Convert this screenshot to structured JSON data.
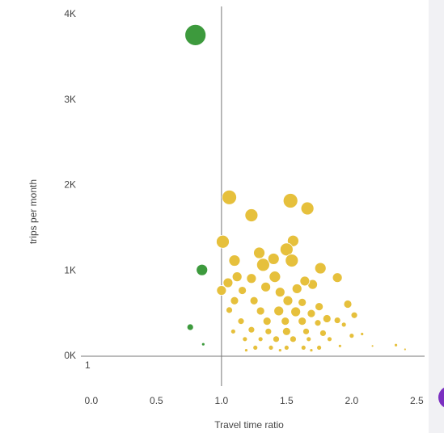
{
  "chart_data": {
    "type": "scatter",
    "x_label": "Travel time ratio",
    "y_label": "trips per month",
    "annotation": "1",
    "xlim": [
      -0.08,
      2.56
    ],
    "ylim": [
      -350,
      4170
    ],
    "xticks": [
      {
        "value": 0,
        "label": "0.0"
      },
      0.5,
      {
        "value": 1,
        "label": "1.0"
      },
      1.5,
      {
        "value": 2,
        "label": "2.0"
      },
      2.5
    ],
    "yticks": [
      {
        "value": 0,
        "label": "0K"
      },
      {
        "value": 1000,
        "label": "1K"
      },
      {
        "value": 2000,
        "label": "2K"
      },
      {
        "value": 3000,
        "label": "3K"
      },
      {
        "value": 4000,
        "label": "4K"
      }
    ],
    "vline": 1,
    "hline": 0,
    "series": [
      {
        "color": "#3d9a3d",
        "x": [
          0.8,
          0.85,
          0.76,
          0.86
        ],
        "values": [
          3760,
          1010,
          340,
          140
        ],
        "sizes": [
          13,
          7,
          4,
          2
        ]
      },
      {
        "color": "#e6c03c",
        "x": [
          1.06,
          1.53,
          1.66,
          1.23,
          1.01,
          1.55,
          1.1,
          1.29,
          1.32,
          1.5,
          1.4,
          1.54,
          1.76,
          1.89,
          1.05,
          1.12,
          1.23,
          1.41,
          1.7,
          1.0,
          1.16,
          1.34,
          1.45,
          1.58,
          1.64,
          1.1,
          1.25,
          1.51,
          1.62,
          1.75,
          1.97,
          2.02,
          1.06,
          1.3,
          1.44,
          1.57,
          1.69,
          1.81,
          1.89,
          1.15,
          1.35,
          1.49,
          1.62,
          1.74,
          1.09,
          1.23,
          1.36,
          1.5,
          1.65,
          1.78,
          1.94,
          2.0,
          1.18,
          1.3,
          1.42,
          1.55,
          1.67,
          1.83,
          2.08,
          1.26,
          1.38,
          1.5,
          1.63,
          1.75,
          1.91,
          1.19,
          1.45,
          1.69,
          2.16,
          2.34,
          2.41
        ],
        "values": [
          1860,
          1820,
          1730,
          1650,
          1340,
          1350,
          1120,
          1210,
          1070,
          1250,
          1140,
          1120,
          1030,
          920,
          860,
          930,
          910,
          930,
          840,
          770,
          770,
          810,
          750,
          790,
          880,
          650,
          650,
          650,
          630,
          580,
          610,
          480,
          540,
          530,
          530,
          520,
          500,
          440,
          420,
          410,
          410,
          410,
          410,
          390,
          290,
          310,
          290,
          290,
          290,
          270,
          370,
          240,
          200,
          200,
          200,
          200,
          200,
          200,
          260,
          100,
          100,
          100,
          100,
          100,
          120,
          70,
          70,
          70,
          120,
          130,
          80
        ],
        "sizes": [
          9,
          9,
          8,
          8,
          8,
          7,
          7,
          7,
          8,
          8,
          7,
          8,
          7,
          6,
          6,
          6,
          6,
          7,
          6,
          6,
          5,
          6,
          6,
          6,
          6,
          5,
          5,
          6,
          5,
          5,
          5,
          4,
          4,
          5,
          6,
          6,
          5,
          5,
          4,
          4,
          5,
          5,
          5,
          4,
          3,
          4,
          4,
          5,
          4,
          4,
          3,
          3,
          3,
          3,
          4,
          4,
          3,
          3,
          2,
          3,
          3,
          3,
          3,
          3,
          2,
          2,
          2,
          2,
          1.5,
          2,
          1.5
        ]
      }
    ]
  }
}
